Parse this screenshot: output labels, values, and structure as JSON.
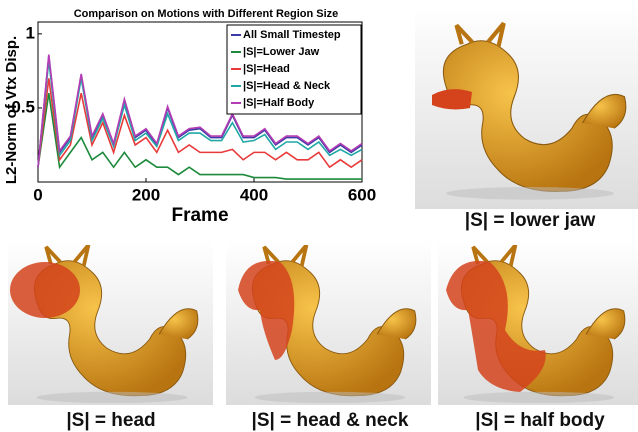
{
  "chart_data": {
    "type": "line",
    "title": "Comparison on Motions with Different Region Size",
    "xlabel": "Frame",
    "ylabel": "L2-Norm of Vtx Disp.",
    "x": [
      0,
      20,
      40,
      60,
      80,
      100,
      120,
      140,
      160,
      180,
      200,
      220,
      240,
      260,
      280,
      300,
      320,
      340,
      360,
      380,
      400,
      420,
      440,
      460,
      480,
      500,
      520,
      540,
      560,
      580,
      600
    ],
    "xlim": [
      0,
      600
    ],
    "xticks": [
      0,
      200,
      400,
      600
    ],
    "ylim": [
      0,
      1.08
    ],
    "yticks": [
      0.5,
      1
    ],
    "legend": "upper right",
    "series": [
      {
        "name": "All Small Timestep",
        "color": "#3b3ba8",
        "values": [
          0.1,
          0.85,
          0.2,
          0.3,
          0.72,
          0.3,
          0.45,
          0.25,
          0.55,
          0.3,
          0.35,
          0.25,
          0.5,
          0.3,
          0.35,
          0.36,
          0.3,
          0.3,
          0.45,
          0.3,
          0.3,
          0.35,
          0.25,
          0.3,
          0.3,
          0.25,
          0.3,
          0.2,
          0.25,
          0.2,
          0.25
        ]
      },
      {
        "name": "|S|=Lower Jaw",
        "color": "#1e8a3c",
        "values": [
          0.1,
          0.6,
          0.1,
          0.2,
          0.3,
          0.15,
          0.2,
          0.1,
          0.2,
          0.1,
          0.15,
          0.1,
          0.1,
          0.05,
          0.1,
          0.05,
          0.05,
          0.05,
          0.05,
          0.05,
          0.03,
          0.03,
          0.03,
          0.02,
          0.02,
          0.02,
          0.02,
          0.02,
          0.02,
          0.02,
          0.02
        ]
      },
      {
        "name": "|S|=Head",
        "color": "#e83a3a",
        "values": [
          0.1,
          0.7,
          0.15,
          0.25,
          0.6,
          0.25,
          0.4,
          0.2,
          0.45,
          0.25,
          0.3,
          0.2,
          0.35,
          0.2,
          0.25,
          0.2,
          0.2,
          0.2,
          0.22,
          0.15,
          0.2,
          0.2,
          0.15,
          0.2,
          0.15,
          0.15,
          0.2,
          0.1,
          0.15,
          0.1,
          0.15
        ]
      },
      {
        "name": "|S|=Head & Neck",
        "color": "#22a7a7",
        "values": [
          0.1,
          0.82,
          0.18,
          0.28,
          0.7,
          0.28,
          0.43,
          0.24,
          0.52,
          0.28,
          0.33,
          0.24,
          0.46,
          0.28,
          0.33,
          0.33,
          0.28,
          0.28,
          0.4,
          0.27,
          0.28,
          0.32,
          0.22,
          0.27,
          0.27,
          0.22,
          0.27,
          0.18,
          0.22,
          0.18,
          0.22
        ]
      },
      {
        "name": "|S|=Half Body",
        "color": "#b43cb4",
        "values": [
          0.1,
          0.86,
          0.21,
          0.31,
          0.73,
          0.31,
          0.46,
          0.26,
          0.56,
          0.31,
          0.36,
          0.26,
          0.51,
          0.31,
          0.36,
          0.37,
          0.31,
          0.31,
          0.46,
          0.31,
          0.31,
          0.36,
          0.26,
          0.31,
          0.31,
          0.26,
          0.31,
          0.21,
          0.26,
          0.21,
          0.26
        ]
      }
    ]
  },
  "panels": [
    {
      "caption": "|S| = lower jaw"
    },
    {
      "caption": "|S| = head"
    },
    {
      "caption": "|S| = head & neck"
    },
    {
      "caption": "|S| = half body"
    }
  ]
}
